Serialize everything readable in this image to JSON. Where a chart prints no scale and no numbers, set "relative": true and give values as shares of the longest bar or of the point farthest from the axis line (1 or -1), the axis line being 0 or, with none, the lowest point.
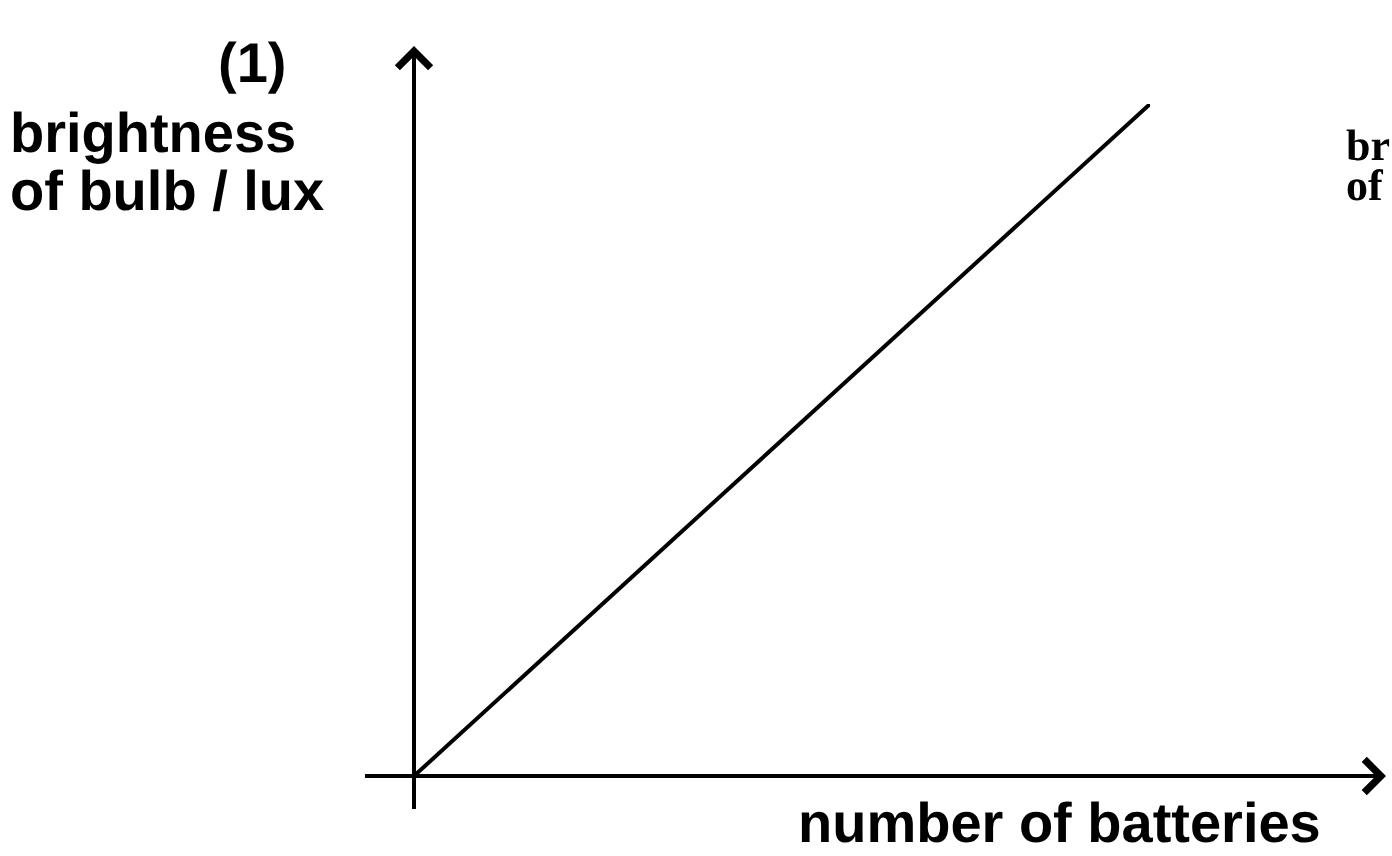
{
  "chart_data": {
    "type": "line",
    "title": "(1)",
    "xlabel": "number of batteries",
    "ylabel": "brightness\nof bulb / lux",
    "annotations": [
      "br\nof"
    ],
    "categories": [
      null,
      null
    ],
    "values": [
      0,
      1
    ],
    "color": "#000000",
    "relative": true,
    "tick_labels": false,
    "marker": "none",
    "line_style": "solid"
  }
}
